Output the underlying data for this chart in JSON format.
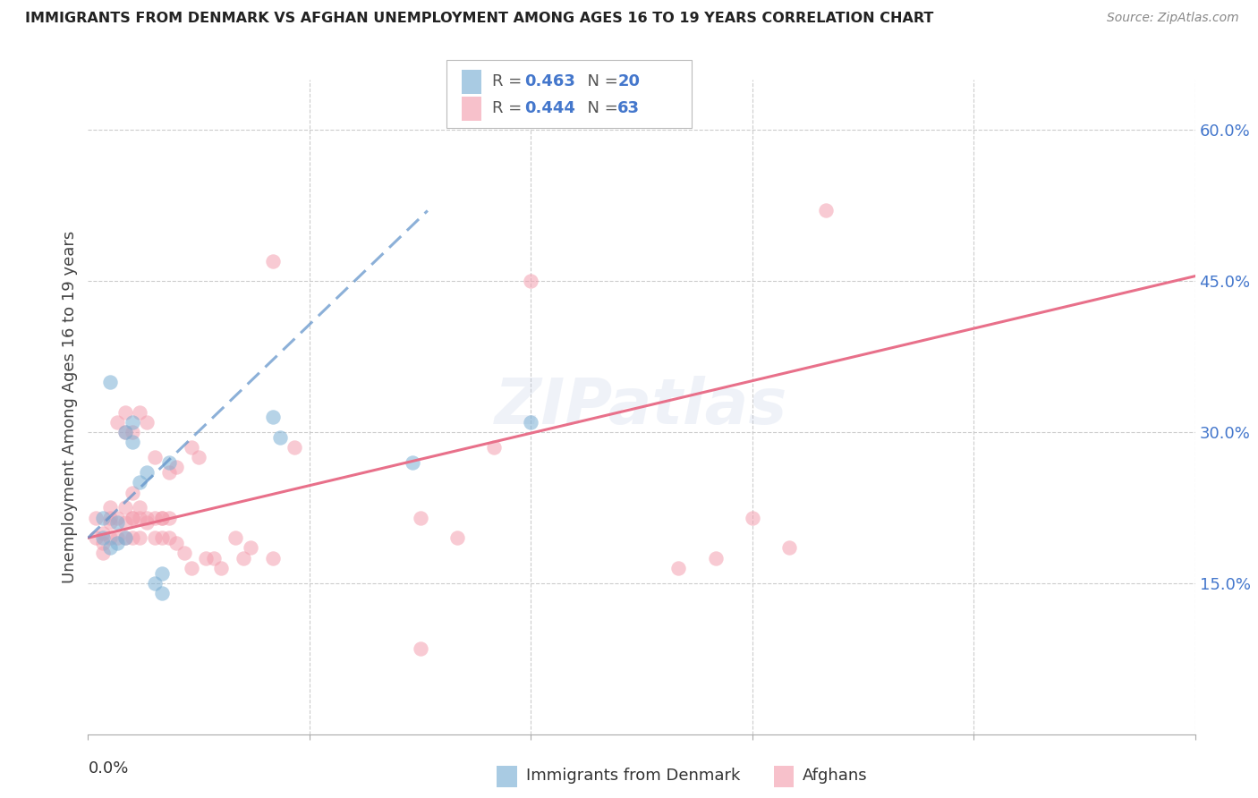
{
  "title": "IMMIGRANTS FROM DENMARK VS AFGHAN UNEMPLOYMENT AMONG AGES 16 TO 19 YEARS CORRELATION CHART",
  "source": "Source: ZipAtlas.com",
  "ylabel": "Unemployment Among Ages 16 to 19 years",
  "y_tick_labels": [
    "15.0%",
    "30.0%",
    "45.0%",
    "60.0%"
  ],
  "y_tick_values": [
    0.15,
    0.3,
    0.45,
    0.6
  ],
  "x_lim": [
    0.0,
    0.15
  ],
  "y_lim": [
    0.0,
    0.65
  ],
  "legend_blue_r": "0.463",
  "legend_blue_n": "20",
  "legend_pink_r": "0.444",
  "legend_pink_n": "63",
  "watermark": "ZIPatlas",
  "blue_color": "#7BAFD4",
  "pink_color": "#F4A0B0",
  "blue_line_color": "#5B8FC8",
  "pink_line_color": "#E8708A",
  "blue_line_x": [
    0.0,
    0.046
  ],
  "blue_line_y": [
    0.195,
    0.52
  ],
  "pink_line_x": [
    0.0,
    0.15
  ],
  "pink_line_y": [
    0.195,
    0.455
  ],
  "denmark_x": [
    0.002,
    0.002,
    0.003,
    0.004,
    0.004,
    0.005,
    0.005,
    0.006,
    0.006,
    0.007,
    0.008,
    0.009,
    0.01,
    0.01,
    0.011,
    0.025,
    0.026,
    0.044,
    0.06,
    0.003
  ],
  "denmark_y": [
    0.195,
    0.215,
    0.185,
    0.19,
    0.21,
    0.195,
    0.3,
    0.29,
    0.31,
    0.25,
    0.26,
    0.15,
    0.14,
    0.16,
    0.27,
    0.315,
    0.295,
    0.27,
    0.31,
    0.35
  ],
  "afghan_x": [
    0.001,
    0.001,
    0.002,
    0.002,
    0.002,
    0.003,
    0.003,
    0.003,
    0.003,
    0.004,
    0.004,
    0.004,
    0.005,
    0.005,
    0.005,
    0.005,
    0.005,
    0.006,
    0.006,
    0.006,
    0.006,
    0.006,
    0.007,
    0.007,
    0.007,
    0.007,
    0.008,
    0.008,
    0.008,
    0.009,
    0.009,
    0.009,
    0.01,
    0.01,
    0.01,
    0.011,
    0.011,
    0.011,
    0.012,
    0.012,
    0.013,
    0.014,
    0.014,
    0.015,
    0.016,
    0.017,
    0.018,
    0.02,
    0.021,
    0.022,
    0.025,
    0.025,
    0.028,
    0.045,
    0.045,
    0.05,
    0.055,
    0.06,
    0.08,
    0.085,
    0.09,
    0.095,
    0.1
  ],
  "afghan_y": [
    0.195,
    0.215,
    0.18,
    0.19,
    0.2,
    0.195,
    0.21,
    0.215,
    0.225,
    0.195,
    0.215,
    0.31,
    0.195,
    0.21,
    0.225,
    0.3,
    0.32,
    0.195,
    0.215,
    0.215,
    0.24,
    0.3,
    0.195,
    0.215,
    0.225,
    0.32,
    0.21,
    0.215,
    0.31,
    0.195,
    0.215,
    0.275,
    0.195,
    0.215,
    0.215,
    0.195,
    0.215,
    0.26,
    0.19,
    0.265,
    0.18,
    0.165,
    0.285,
    0.275,
    0.175,
    0.175,
    0.165,
    0.195,
    0.175,
    0.185,
    0.175,
    0.47,
    0.285,
    0.215,
    0.085,
    0.195,
    0.285,
    0.45,
    0.165,
    0.175,
    0.215,
    0.185,
    0.52
  ]
}
